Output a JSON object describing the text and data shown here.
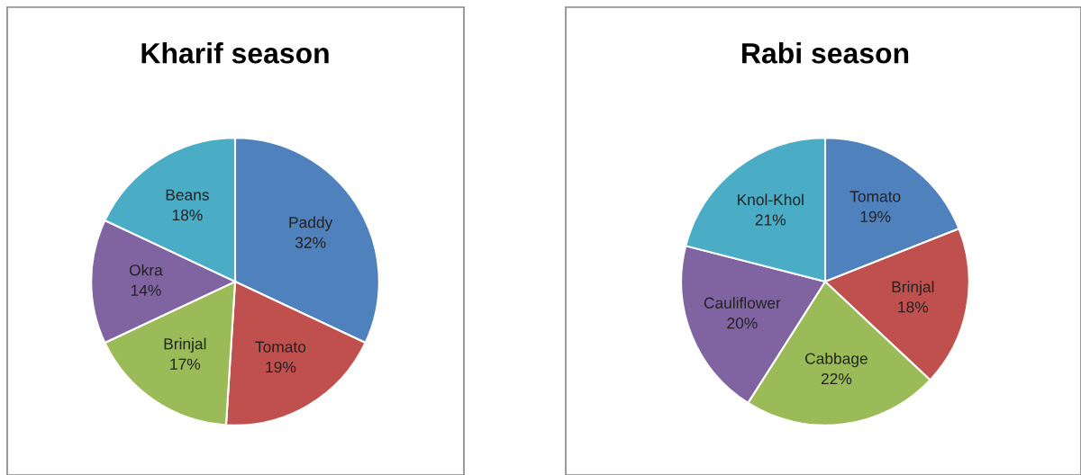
{
  "chart_data": [
    {
      "type": "pie",
      "title": "Kharif season",
      "categories": [
        "Paddy",
        "Tomato",
        "Brinjal",
        "Okra",
        "Beans"
      ],
      "values": [
        32,
        19,
        17,
        14,
        18
      ],
      "value_labels": [
        "32%",
        "19%",
        "17%",
        "14%",
        "18%"
      ],
      "colors": [
        "#4f81bd",
        "#c0504d",
        "#9bbb59",
        "#8064a2",
        "#4bacc6"
      ],
      "legend": false
    },
    {
      "type": "pie",
      "title": "Rabi season",
      "categories": [
        "Tomato",
        "Brinjal",
        "Cabbage",
        "Cauliflower",
        "Knol-Khol"
      ],
      "values": [
        19,
        18,
        22,
        20,
        21
      ],
      "value_labels": [
        "19%",
        "18%",
        "22%",
        "20%",
        "21%"
      ],
      "colors": [
        "#4f81bd",
        "#c0504d",
        "#9bbb59",
        "#8064a2",
        "#4bacc6"
      ],
      "legend": false
    }
  ]
}
